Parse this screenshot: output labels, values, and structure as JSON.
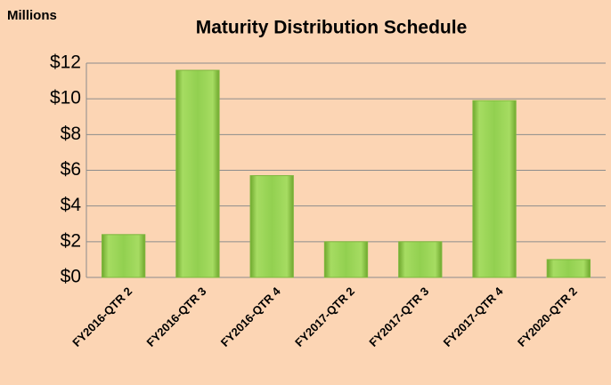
{
  "chart_data": {
    "type": "bar",
    "title": "Maturity Distribution Schedule",
    "y_unit_label": "Millions",
    "categories": [
      "FY2016-QTR 2",
      "FY2016-QTR 3",
      "FY2016-QTR 4",
      "FY2017-QTR 2",
      "FY2017-QTR 3",
      "FY2017-QTR 4",
      "FY2020-QTR 2"
    ],
    "values": [
      2.4,
      11.6,
      5.7,
      2.0,
      2.0,
      9.9,
      1.0
    ],
    "color": "#92d050",
    "ylim": [
      0,
      12
    ],
    "yticks": [
      {
        "value": 0,
        "label": "$0"
      },
      {
        "value": 2,
        "label": "$2"
      },
      {
        "value": 4,
        "label": "$4"
      },
      {
        "value": 6,
        "label": "$6"
      },
      {
        "value": 8,
        "label": "$8"
      },
      {
        "value": 10,
        "label": "$10"
      },
      {
        "value": 12,
        "label": "$12"
      }
    ],
    "grid": true
  }
}
